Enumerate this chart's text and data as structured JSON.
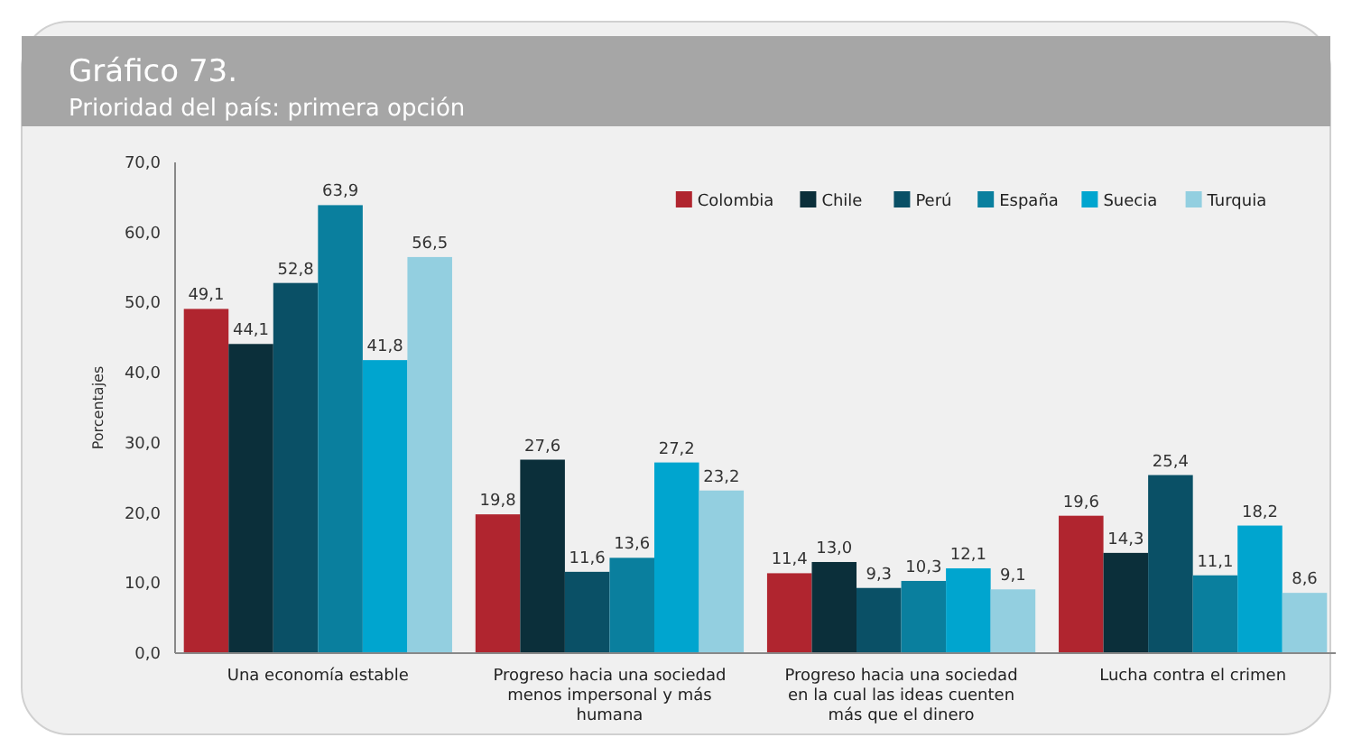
{
  "chart_data": {
    "type": "bar",
    "title": "Gráfico 73.",
    "subtitle": "Prioridad del país: primera opción",
    "ylabel": "Porcentajes",
    "categories": [
      "Una economía estable",
      "Progreso hacia una sociedad menos impersonal y más humana",
      "Progreso hacia una sociedad en la cual las ideas cuenten más que el dinero",
      "Lucha contra el crimen"
    ],
    "series": [
      {
        "name": "Colombia",
        "color": "#b0252f",
        "values": [
          49.1,
          19.8,
          11.4,
          19.6
        ],
        "value_labels": [
          "49,1",
          "19,8",
          "11,4",
          "19,6"
        ]
      },
      {
        "name": "Chile",
        "color": "#0b2f3a",
        "values": [
          44.1,
          27.6,
          13.0,
          14.3
        ],
        "value_labels": [
          "44,1",
          "27,6",
          "13,0",
          "14,3"
        ]
      },
      {
        "name": "Perú",
        "color": "#0a5066",
        "values": [
          52.8,
          11.6,
          9.3,
          25.4
        ],
        "value_labels": [
          "52,8",
          "11,6",
          "9,3",
          "25,4"
        ]
      },
      {
        "name": "España",
        "color": "#0a7f9e",
        "values": [
          63.9,
          13.6,
          10.3,
          11.1
        ],
        "value_labels": [
          "63,9",
          "13,6",
          "10,3",
          "11,1"
        ]
      },
      {
        "name": "Suecia",
        "color": "#00a5cf",
        "values": [
          41.8,
          27.2,
          12.1,
          18.2
        ],
        "value_labels": [
          "41,8",
          "27,2",
          "12,1",
          "18,2"
        ]
      },
      {
        "name": "Turquia",
        "color": "#93cfe0",
        "values": [
          56.5,
          23.2,
          9.1,
          8.6
        ],
        "value_labels": [
          "56,5",
          "23,2",
          "9,1",
          "8,6"
        ]
      }
    ],
    "ylim": [
      0,
      70
    ],
    "yticks": [
      {
        "value": 0,
        "label": "0,0"
      },
      {
        "value": 10,
        "label": "10,0"
      },
      {
        "value": 20,
        "label": "20,0"
      },
      {
        "value": 30,
        "label": "30,0"
      },
      {
        "value": 40,
        "label": "40,0"
      },
      {
        "value": 50,
        "label": "50,0"
      },
      {
        "value": 60,
        "label": "60,0"
      },
      {
        "value": 70,
        "label": "70,0"
      }
    ],
    "legend": "top right",
    "grid": false
  }
}
